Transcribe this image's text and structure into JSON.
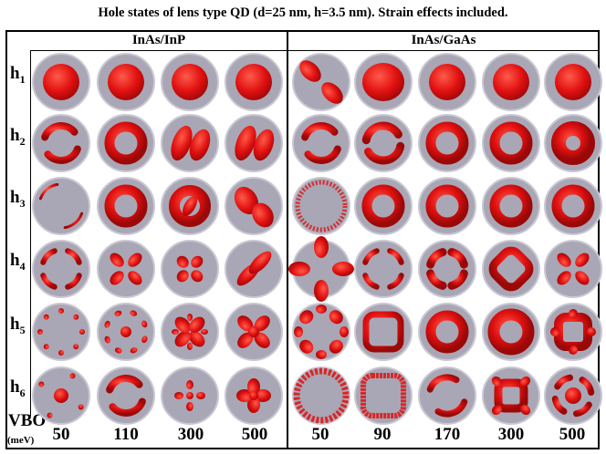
{
  "title": "Hole states of lens type QD (d=25 nm, h=3.5 nm). Strain effects included.",
  "groups": [
    "InAs/InP",
    "InAs/GaAs"
  ],
  "rows": [
    {
      "letter": "h",
      "index": "1"
    },
    {
      "letter": "h",
      "index": "2"
    },
    {
      "letter": "h",
      "index": "3"
    },
    {
      "letter": "h",
      "index": "4"
    },
    {
      "letter": "h",
      "index": "5"
    },
    {
      "letter": "h",
      "index": "6"
    }
  ],
  "vbo_label": "VBO",
  "vbo_unit": "(meV)",
  "columns": [
    "50",
    "110",
    "300",
    "500",
    "50",
    "90",
    "170",
    "300",
    "500"
  ],
  "colors": {
    "blob": "#e01010",
    "disk": "#a9a7b5",
    "disk_edge": "#c9c8d2"
  }
}
